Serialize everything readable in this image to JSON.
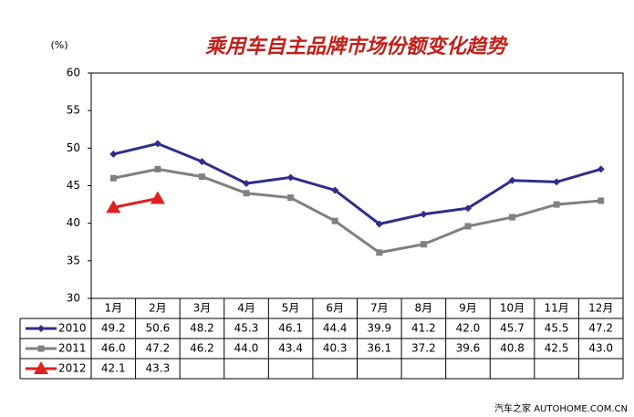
{
  "chart_data": {
    "type": "line",
    "title": "乘用车自主品牌市场份额变化趋势",
    "y_label": "(%)",
    "categories": [
      "1月",
      "2月",
      "3月",
      "4月",
      "5月",
      "6月",
      "7月",
      "8月",
      "9月",
      "10月",
      "11月",
      "12月"
    ],
    "series": [
      {
        "name": "2010",
        "color": "#2e2e8a",
        "marker": "diamond",
        "values": [
          49.2,
          50.6,
          48.2,
          45.3,
          46.1,
          44.4,
          39.9,
          41.2,
          42.0,
          45.7,
          45.5,
          47.2
        ],
        "value_labels": [
          "49.2",
          "50.6",
          "48.2",
          "45.3",
          "46.1",
          "44.4",
          "39.9",
          "41.2",
          "42.0",
          "45.7",
          "45.5",
          "47.2"
        ]
      },
      {
        "name": "2011",
        "color": "#808080",
        "marker": "square",
        "values": [
          46.0,
          47.2,
          46.2,
          44.0,
          43.4,
          40.3,
          36.1,
          37.2,
          39.6,
          40.8,
          42.5,
          43.0
        ],
        "value_labels": [
          "46.0",
          "47.2",
          "46.2",
          "44.0",
          "43.4",
          "40.3",
          "36.1",
          "37.2",
          "39.6",
          "40.8",
          "42.5",
          "43.0"
        ]
      },
      {
        "name": "2012",
        "color": "#e02020",
        "marker": "triangle",
        "values": [
          42.1,
          43.3,
          null,
          null,
          null,
          null,
          null,
          null,
          null,
          null,
          null,
          null
        ],
        "value_labels": [
          "42.1",
          "43.3",
          null,
          null,
          null,
          null,
          null,
          null,
          null,
          null,
          null,
          null
        ]
      }
    ],
    "ylim": [
      30,
      60
    ],
    "yticks": [
      30,
      35,
      40,
      45,
      50,
      55,
      60
    ],
    "grid": false,
    "footer": "汽车之家 AUTOHOME.COM.CN"
  }
}
